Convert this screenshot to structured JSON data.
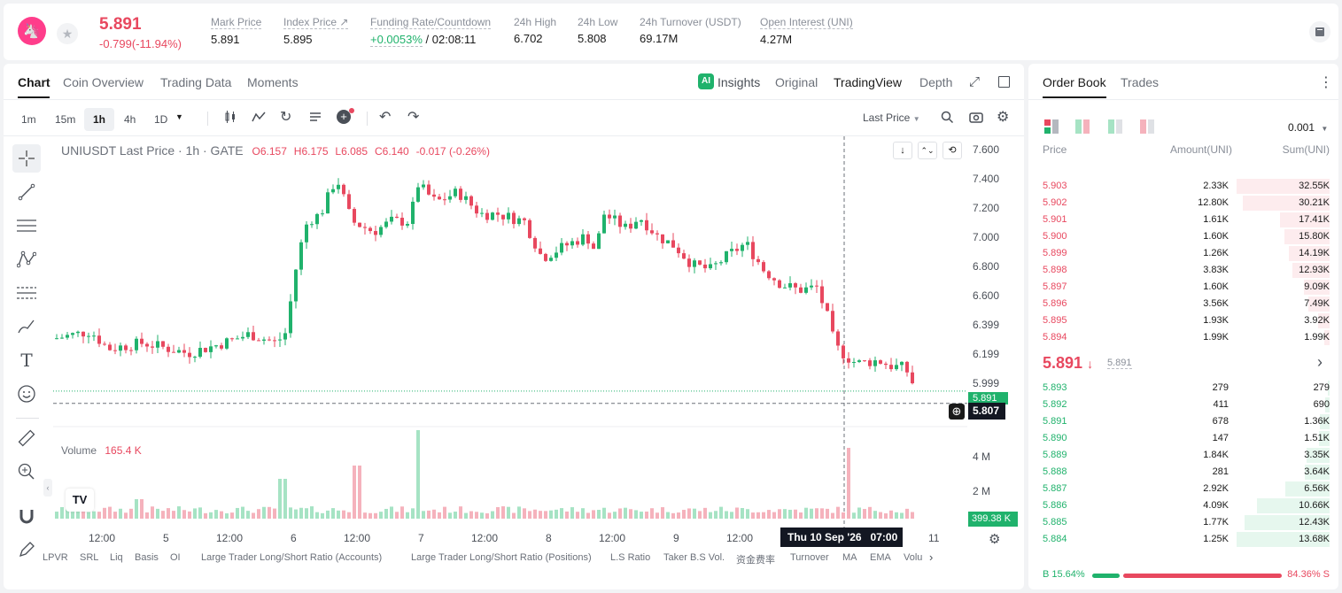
{
  "ticker": {
    "price": "5.891",
    "change": "-0.799(-11.94%)",
    "stats": [
      {
        "label": "Mark Price",
        "value": "5.891"
      },
      {
        "label": "Index Price ↗",
        "value": "5.895"
      },
      {
        "label": "Funding Rate/Countdown",
        "value_a": "+0.0053%",
        "value_b": "/ 02:08:11"
      },
      {
        "label": "24h High",
        "value": "6.702"
      },
      {
        "label": "24h Low",
        "value": "5.808"
      },
      {
        "label": "24h Turnover (USDT)",
        "value": "69.17M"
      },
      {
        "label": "Open Interest (UNI)",
        "value": "4.27M"
      }
    ]
  },
  "chart_tabs": [
    "Chart",
    "Coin Overview",
    "Trading Data",
    "Moments"
  ],
  "view_tabs": [
    "Insights",
    "Original",
    "TradingView",
    "Depth"
  ],
  "intervals": [
    "1m",
    "15m",
    "1h",
    "4h",
    "1D"
  ],
  "last_price_select": "Last Price",
  "legend": {
    "symbol": "UNIUSDT Last Price · 1h · GATE",
    "o": "O6.157",
    "h": "H6.175",
    "l": "L6.085",
    "c": "C6.140",
    "chg": "-0.017 (-0.26%)"
  },
  "volume": {
    "label": "Volume",
    "value": "165.4 K",
    "current": "399.38 K",
    "axis": [
      "4 M",
      "2 M"
    ]
  },
  "price_axis": [
    "7.600",
    "7.400",
    "7.200",
    "7.000",
    "6.800",
    "6.600",
    "6.399",
    "6.199",
    "5.999"
  ],
  "price_last": "5.891",
  "price_cursor": "5.807",
  "time_axis": [
    "12:00",
    "5",
    "12:00",
    "6",
    "12:00",
    "7",
    "12:00",
    "8",
    "12:00",
    "9",
    "12:00",
    "11"
  ],
  "crosshair_time": "Thu 10 Sep '26   07:00",
  "indicators": [
    "LPVR",
    "SRL",
    "Liq",
    "Basis",
    "OI",
    "Large Trader Long/Short Ratio (Accounts)",
    "Large Trader Long/Short Ratio (Positions)",
    "L.S Ratio",
    "Taker B.S Vol.",
    "资金费率",
    "Turnover",
    "MA",
    "EMA",
    "Volu"
  ],
  "orderbook": {
    "tabs": [
      "Order Book",
      "Trades"
    ],
    "precision": "0.001",
    "headers": [
      "Price",
      "Amount(UNI)",
      "Sum(UNI)"
    ],
    "asks": [
      {
        "price": "5.903",
        "amount": "2.33K",
        "sum": "32.55K",
        "depth": 1.0
      },
      {
        "price": "5.902",
        "amount": "12.80K",
        "sum": "30.21K",
        "depth": 0.93
      },
      {
        "price": "5.901",
        "amount": "1.61K",
        "sum": "17.41K",
        "depth": 0.535
      },
      {
        "price": "5.900",
        "amount": "1.60K",
        "sum": "15.80K",
        "depth": 0.485
      },
      {
        "price": "5.899",
        "amount": "1.26K",
        "sum": "14.19K",
        "depth": 0.436
      },
      {
        "price": "5.898",
        "amount": "3.83K",
        "sum": "12.93K",
        "depth": 0.397
      },
      {
        "price": "5.897",
        "amount": "1.60K",
        "sum": "9.09K",
        "depth": 0.279
      },
      {
        "price": "5.896",
        "amount": "3.56K",
        "sum": "7.49K",
        "depth": 0.23
      },
      {
        "price": "5.895",
        "amount": "1.93K",
        "sum": "3.92K",
        "depth": 0.12
      },
      {
        "price": "5.894",
        "amount": "1.99K",
        "sum": "1.99K",
        "depth": 0.061
      }
    ],
    "mid_price": "5.891",
    "mid_mark": "5.891",
    "bids": [
      {
        "price": "5.893",
        "amount": "279",
        "sum": "279",
        "depth": 0.02
      },
      {
        "price": "5.892",
        "amount": "411",
        "sum": "690",
        "depth": 0.05
      },
      {
        "price": "5.891",
        "amount": "678",
        "sum": "1.36K",
        "depth": 0.1
      },
      {
        "price": "5.890",
        "amount": "147",
        "sum": "1.51K",
        "depth": 0.11
      },
      {
        "price": "5.889",
        "amount": "1.84K",
        "sum": "3.35K",
        "depth": 0.245
      },
      {
        "price": "5.888",
        "amount": "281",
        "sum": "3.64K",
        "depth": 0.266
      },
      {
        "price": "5.887",
        "amount": "2.92K",
        "sum": "6.56K",
        "depth": 0.48
      },
      {
        "price": "5.886",
        "amount": "4.09K",
        "sum": "10.66K",
        "depth": 0.78
      },
      {
        "price": "5.885",
        "amount": "1.77K",
        "sum": "12.43K",
        "depth": 0.91
      },
      {
        "price": "5.884",
        "amount": "1.25K",
        "sum": "13.68K",
        "depth": 1.0
      }
    ],
    "buy_ratio": "B 15.64%",
    "sell_ratio": "84.36% S",
    "buy_fraction": 0.1564
  },
  "colors": {
    "up": "#20b26c",
    "down": "#e8485f",
    "up_light": "#a6e3c4",
    "down_light": "#f5b2bc"
  }
}
